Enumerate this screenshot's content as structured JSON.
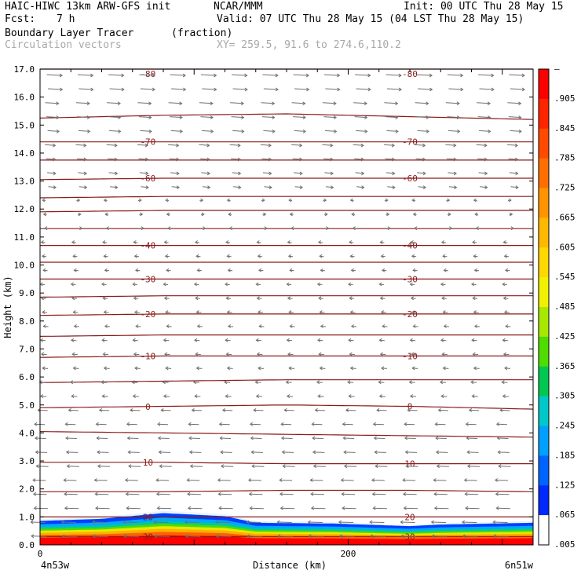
{
  "header": {
    "model": "HAIC-HIWC 13km ARW-GFS init",
    "org": "NCAR/MMM",
    "init": "Init: 00 UTC Thu 28 May 15",
    "fcst_label": "Fcst:",
    "fcst_value": "7 h",
    "valid": "Valid: 07 UTC Thu 28 May 15 (04 LST Thu 28 May 15)",
    "field": "Boundary Layer Tracer",
    "units": "(fraction)",
    "overlay": "Circulation vectors",
    "xy": "XY= 259.5, 91.6 to 274.6,110.2"
  },
  "chart_data": {
    "type": "heatmap",
    "title": "Boundary Layer Tracer",
    "xlabel": "Distance (km)",
    "ylabel": "Height (km)",
    "xlim": [
      0,
      320
    ],
    "ylim": [
      0,
      17
    ],
    "x_ticks": [
      {
        "value": 0,
        "label": "0"
      },
      {
        "value": 200,
        "label": "200"
      }
    ],
    "x_end_labels": {
      "left": "4n53w",
      "right": "6n51w"
    },
    "y_ticks": [
      "0.0",
      "1.0",
      "2.0",
      "3.0",
      "4.0",
      "5.0",
      "6.0",
      "7.0",
      "8.0",
      "9.0",
      "10.0",
      "11.0",
      "12.0",
      "13.0",
      "14.0",
      "15.0",
      "16.0",
      "17.0"
    ],
    "colorbar": {
      "labels": [
        "–",
        ".905",
        ".845",
        ".785",
        ".725",
        ".665",
        ".605",
        ".545",
        ".485",
        ".425",
        ".365",
        ".305",
        ".245",
        ".185",
        ".125",
        ".065",
        ".005"
      ],
      "colors": [
        "#ff0000",
        "#ff2400",
        "#ff4a00",
        "#ff6e00",
        "#ff9400",
        "#ffb800",
        "#ffd800",
        "#f0f000",
        "#a8e800",
        "#50dc00",
        "#00c850",
        "#00c8c8",
        "#00a0ff",
        "#0064ff",
        "#0028ff",
        "#ffffff"
      ]
    },
    "tracer_layer": {
      "top_km": [
        [
          0,
          0.92
        ],
        [
          40,
          1.0
        ],
        [
          80,
          1.22
        ],
        [
          120,
          1.1
        ],
        [
          140,
          0.85
        ],
        [
          190,
          0.82
        ],
        [
          240,
          0.72
        ],
        [
          260,
          0.78
        ],
        [
          320,
          0.85
        ]
      ]
    },
    "temperature_contours": [
      {
        "label": "30",
        "heights": [
          0.3,
          0.3,
          0.3,
          0.3,
          0.3
        ]
      },
      {
        "label": "20",
        "heights": [
          1.0,
          1.0,
          1.0,
          1.0,
          1.0
        ]
      },
      {
        "label": "",
        "heights": [
          1.9,
          1.9,
          1.95,
          1.95,
          1.9
        ]
      },
      {
        "label": "10",
        "heights": [
          2.95,
          2.95,
          2.9,
          2.9,
          2.9
        ]
      },
      {
        "label": "",
        "heights": [
          4.05,
          4.0,
          3.95,
          3.9,
          3.85
        ]
      },
      {
        "label": "0",
        "heights": [
          4.9,
          4.95,
          5.0,
          4.95,
          4.85
        ]
      },
      {
        "label": "",
        "heights": [
          5.8,
          5.85,
          5.9,
          5.9,
          5.9
        ]
      },
      {
        "label": "-10",
        "heights": [
          6.7,
          6.75,
          6.75,
          6.75,
          6.75
        ]
      },
      {
        "label": "",
        "heights": [
          7.45,
          7.5,
          7.5,
          7.5,
          7.5
        ]
      },
      {
        "label": "-20",
        "heights": [
          8.2,
          8.25,
          8.25,
          8.25,
          8.25
        ]
      },
      {
        "label": "",
        "heights": [
          8.85,
          8.9,
          8.9,
          8.9,
          8.9
        ]
      },
      {
        "label": "-30",
        "heights": [
          9.5,
          9.5,
          9.5,
          9.5,
          9.5
        ]
      },
      {
        "label": "",
        "heights": [
          10.1,
          10.1,
          10.1,
          10.1,
          10.1
        ]
      },
      {
        "label": "-40",
        "heights": [
          10.7,
          10.7,
          10.7,
          10.7,
          10.7
        ]
      },
      {
        "label": "",
        "heights": [
          11.3,
          11.3,
          11.3,
          11.3,
          11.3
        ]
      },
      {
        "label": "",
        "heights": [
          11.9,
          11.95,
          11.95,
          11.95,
          11.95
        ]
      },
      {
        "label": "",
        "heights": [
          12.4,
          12.45,
          12.45,
          12.45,
          12.45
        ]
      },
      {
        "label": "-60",
        "heights": [
          13.05,
          13.1,
          13.1,
          13.1,
          13.1
        ]
      },
      {
        "label": "",
        "heights": [
          13.75,
          13.75,
          13.75,
          13.75,
          13.75
        ]
      },
      {
        "label": "-70",
        "heights": [
          14.4,
          14.4,
          14.4,
          14.4,
          14.4
        ]
      },
      {
        "label": "",
        "heights": [
          15.25,
          15.35,
          15.4,
          15.3,
          15.2
        ]
      },
      {
        "label": "-80",
        "heights": [
          17.1,
          17.1,
          17.1,
          17.1,
          17.1
        ]
      }
    ]
  }
}
